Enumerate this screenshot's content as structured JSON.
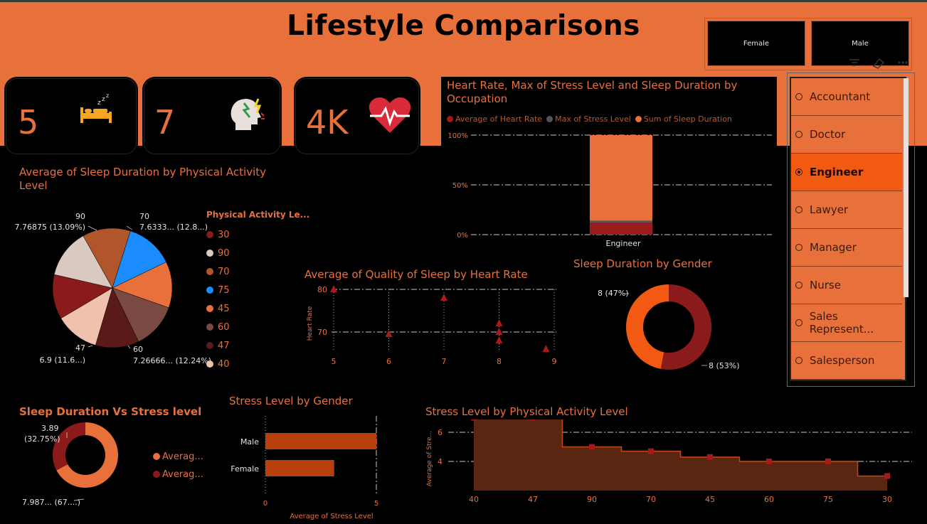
{
  "title": "Lifestyle Comparisons",
  "gender_buttons": {
    "female": "Female",
    "male": "Male"
  },
  "kpis": [
    {
      "value": "5",
      "icon": "sleep-icon"
    },
    {
      "value": "7",
      "icon": "stress-head-icon"
    },
    {
      "value": "4K",
      "icon": "heart-rate-icon"
    }
  ],
  "colors": {
    "accent": "#e8703a",
    "dark_red": "#8b1a1a",
    "selected": "#f25a14"
  },
  "pie": {
    "title": "Average of Sleep Duration by Physical Activity Level",
    "legend_title": "Physical Activity Le...",
    "labels": [
      {
        "k": "90",
        "v": "7.76875 (13.09%)"
      },
      {
        "k": "70",
        "v": "7.6333... (12.8...)"
      },
      {
        "k": "47",
        "v": "6.9 (11.6...)"
      },
      {
        "k": "60",
        "v": "7.26666... (12.24%)"
      }
    ],
    "chart_data": {
      "type": "pie",
      "categories": [
        "30",
        "90",
        "70",
        "75",
        "45",
        "60",
        "47",
        "40"
      ],
      "colors": [
        "#8b1a1a",
        "#d9c9c0",
        "#b0562a",
        "#1a8cff",
        "#e8703a",
        "#7a4a42",
        "#5a1a1a",
        "#f0c2ae"
      ],
      "values": [
        7.1,
        7.77,
        7.63,
        7.6,
        7.35,
        7.27,
        6.9,
        7.0
      ]
    }
  },
  "stack": {
    "title": "Heart Rate, Max of Stress Level and Sleep Duration by Occupation",
    "legend": [
      {
        "name": "Average of Heart Rate",
        "color": "#9b1c1c"
      },
      {
        "name": "Max of Stress Level",
        "color": "#555555"
      },
      {
        "name": "Sum of Sleep Duration",
        "color": "#e8703a"
      }
    ],
    "y_ticks": [
      "100%",
      "50%",
      "0%"
    ],
    "chart_data": {
      "type": "bar",
      "categories": [
        "Engineer"
      ],
      "series": [
        {
          "name": "Average of Heart Rate",
          "values": [
            0.12
          ]
        },
        {
          "name": "Max of Stress Level",
          "values": [
            0.02
          ]
        },
        {
          "name": "Sum of Sleep Duration",
          "values": [
            0.86
          ]
        }
      ],
      "ylim": [
        0,
        1
      ]
    }
  },
  "scatter": {
    "title": "Average of Quality of Sleep by Heart Rate",
    "ylabel": "Heart Rate",
    "x_ticks": [
      "5",
      "6",
      "7",
      "8",
      "9"
    ],
    "y_ticks": [
      "80",
      "70"
    ],
    "chart_data": {
      "type": "scatter",
      "x": [
        5,
        6,
        7,
        8,
        8,
        8,
        8.85
      ],
      "y": [
        80,
        69.5,
        78,
        72,
        70,
        68,
        66
      ],
      "xlim": [
        5,
        9
      ],
      "ylim": [
        64,
        80
      ]
    }
  },
  "gender_donut": {
    "title": "Sleep Duration by Gender",
    "labels": [
      "8 (47%)",
      "8 (53%)"
    ],
    "chart_data": {
      "type": "pie",
      "categories": [
        "Female",
        "Male"
      ],
      "values": [
        47,
        53
      ],
      "colors": [
        "#f25a14",
        "#8b1a1a"
      ]
    }
  },
  "slicer": {
    "items": [
      "Accountant",
      "Doctor",
      "Engineer",
      "Lawyer",
      "Manager",
      "Nurse",
      "Sales Represent...",
      "Salesperson"
    ],
    "selected": "Engineer"
  },
  "donut2": {
    "title": "Sleep Duration Vs Stress level",
    "labels": [
      "3.89",
      "(32.75%)",
      "7.987... (67....)"
    ],
    "legend": [
      "Averag...",
      "Averag..."
    ],
    "chart_data": {
      "type": "pie",
      "values": [
        3.89,
        7.987
      ],
      "colors": [
        "#8b1a1a",
        "#e8703a"
      ]
    }
  },
  "hbar": {
    "title": "Stress Level by Gender",
    "xlabel": "Average of Stress Level",
    "x_ticks": [
      "0",
      "5"
    ],
    "chart_data": {
      "type": "bar",
      "categories": [
        "Male",
        "Female"
      ],
      "values": [
        5.0,
        3.1
      ],
      "xlim": [
        0,
        5
      ]
    }
  },
  "step": {
    "title": "Stress Level by Physical Activity Level",
    "ylabel": "Average of Stre...",
    "y_ticks": [
      "6",
      "4"
    ],
    "chart_data": {
      "type": "area",
      "categories": [
        "40",
        "47",
        "90",
        "70",
        "45",
        "60",
        "75",
        "30"
      ],
      "values": [
        7.0,
        7.0,
        5.0,
        4.7,
        4.3,
        4.0,
        4.0,
        3.0
      ],
      "ylim": [
        2,
        7.5
      ]
    }
  }
}
